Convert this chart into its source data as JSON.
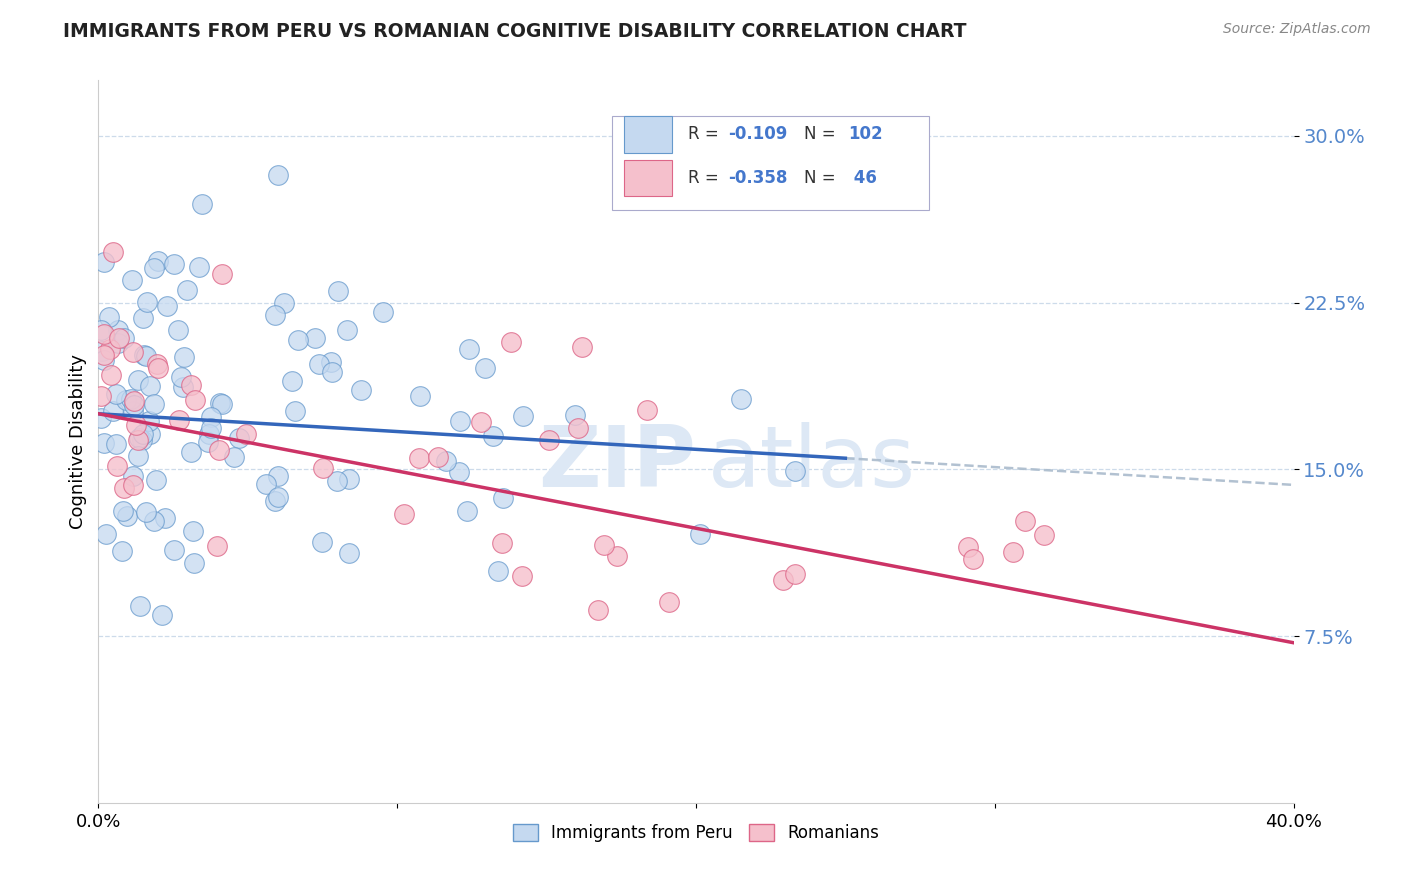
{
  "title": "IMMIGRANTS FROM PERU VS ROMANIAN COGNITIVE DISABILITY CORRELATION CHART",
  "source": "Source: ZipAtlas.com",
  "ylabel": "Cognitive Disability",
  "xlim": [
    0.0,
    0.4
  ],
  "ylim": [
    0.0,
    0.325
  ],
  "ytick_vals": [
    0.075,
    0.15,
    0.225,
    0.3
  ],
  "ytick_labels": [
    "7.5%",
    "15.0%",
    "22.5%",
    "30.0%"
  ],
  "xtick_vals": [
    0.0,
    0.1,
    0.2,
    0.3,
    0.4
  ],
  "xtick_labels": [
    "0.0%",
    "",
    "",
    "",
    "40.0%"
  ],
  "blue_fill": "#c5d9f0",
  "blue_edge": "#6699cc",
  "pink_fill": "#f5c0cc",
  "pink_edge": "#dd6688",
  "line_blue_color": "#3366bb",
  "line_pink_color": "#cc3366",
  "dash_color": "#aabbcc",
  "tick_color": "#5588cc",
  "watermark_color": "#dde8f5",
  "legend_text_color": "#333333",
  "legend_num_color": "#4477cc"
}
